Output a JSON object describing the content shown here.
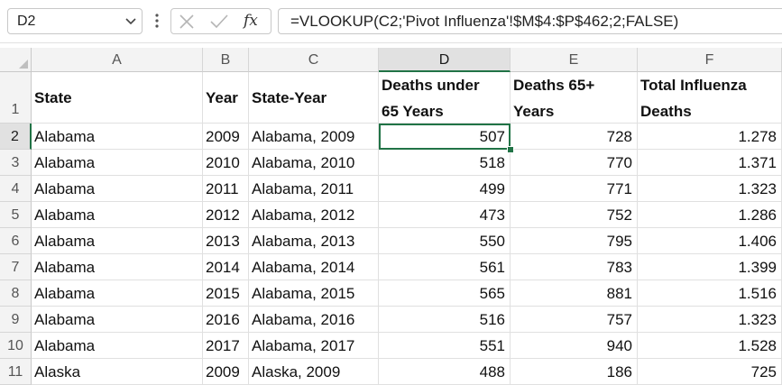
{
  "name_box": {
    "value": "D2"
  },
  "formula_bar": {
    "formula": "=VLOOKUP(C2;'Pivot Influenza'!$M$4:$P$462;2;FALSE)",
    "fx_label": "fx"
  },
  "columns": [
    "A",
    "B",
    "C",
    "D",
    "E",
    "F"
  ],
  "selected_column": "D",
  "selected_row": "2",
  "header_row": {
    "row_number": "1",
    "a": "State",
    "b": "Year",
    "c": "State-Year",
    "d_line1": "Deaths under",
    "d_line2": "65 Years",
    "e_line1": "Deaths 65+",
    "e_line2": "Years",
    "f_line1": "Total Influenza",
    "f_line2": "Deaths"
  },
  "rows": [
    {
      "row_number": "2",
      "state": "Alabama",
      "year": "2009",
      "state_year": "Alabama, 2009",
      "under65": "507",
      "over65": "728",
      "total": "1.278"
    },
    {
      "row_number": "3",
      "state": "Alabama",
      "year": "2010",
      "state_year": "Alabama, 2010",
      "under65": "518",
      "over65": "770",
      "total": "1.371"
    },
    {
      "row_number": "4",
      "state": "Alabama",
      "year": "2011",
      "state_year": "Alabama, 2011",
      "under65": "499",
      "over65": "771",
      "total": "1.323"
    },
    {
      "row_number": "5",
      "state": "Alabama",
      "year": "2012",
      "state_year": "Alabama, 2012",
      "under65": "473",
      "over65": "752",
      "total": "1.286"
    },
    {
      "row_number": "6",
      "state": "Alabama",
      "year": "2013",
      "state_year": "Alabama, 2013",
      "under65": "550",
      "over65": "795",
      "total": "1.406"
    },
    {
      "row_number": "7",
      "state": "Alabama",
      "year": "2014",
      "state_year": "Alabama, 2014",
      "under65": "561",
      "over65": "783",
      "total": "1.399"
    },
    {
      "row_number": "8",
      "state": "Alabama",
      "year": "2015",
      "state_year": "Alabama, 2015",
      "under65": "565",
      "over65": "881",
      "total": "1.516"
    },
    {
      "row_number": "9",
      "state": "Alabama",
      "year": "2016",
      "state_year": "Alabama, 2016",
      "under65": "516",
      "over65": "757",
      "total": "1.323"
    },
    {
      "row_number": "10",
      "state": "Alabama",
      "year": "2017",
      "state_year": "Alabama, 2017",
      "under65": "551",
      "over65": "940",
      "total": "1.528"
    },
    {
      "row_number": "11",
      "state": "Alaska",
      "year": "2009",
      "state_year": "Alaska, 2009",
      "under65": "488",
      "over65": "186",
      "total": "725"
    }
  ]
}
